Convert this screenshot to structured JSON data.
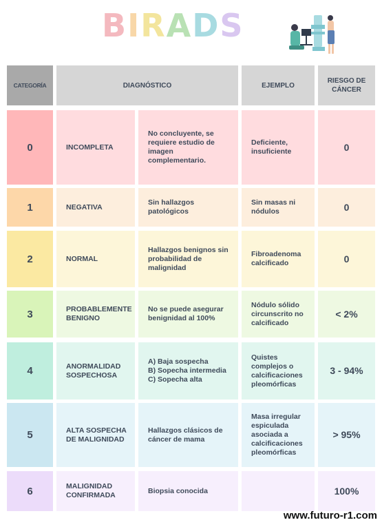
{
  "title": "BIRADS",
  "title_letter_colors": [
    "#f4b9bf",
    "#f8d7a8",
    "#f3e59d",
    "#b9e1b4",
    "#a8dbe1",
    "#d9c7f0"
  ],
  "header": {
    "categoria": "CATEGORÍA",
    "diagnostico": "DIAGNÓSTICO",
    "ejemplo": "EJEMPLO",
    "riesgo": "RIESGO DE CÁNCER"
  },
  "rows": [
    {
      "cat": "0",
      "diag": "INCOMPLETA",
      "detalle": "No concluyente, se requiere estudio de imagen complementario.",
      "ejemplo": "Deficiente, insuficiente",
      "riesgo": "0",
      "num_color": "#ffb7b9",
      "cell_color": "#ffdcdf"
    },
    {
      "cat": "1",
      "diag": "NEGATIVA",
      "detalle": "Sin hallazgos patológicos",
      "ejemplo": "Sin masas ni nódulos",
      "riesgo": "0",
      "num_color": "#fdd7a9",
      "cell_color": "#fdeedd"
    },
    {
      "cat": "2",
      "diag": "NORMAL",
      "detalle": "Hallazgos benignos sin probabilidad de malignidad",
      "ejemplo": "Fibroadenoma calcificado",
      "riesgo": "0",
      "num_color": "#fbe9a2",
      "cell_color": "#fdf6d9"
    },
    {
      "cat": "3",
      "diag": "PROBABLEMENTE BENIGNO",
      "detalle": "No se puede asegurar benignidad al 100%",
      "ejemplo": "Nódulo sólido circunscrito no calcificado",
      "riesgo": "< 2%",
      "num_color": "#d9f4b9",
      "cell_color": "#eef9e2"
    },
    {
      "cat": "4",
      "diag": "ANORMALIDAD SOSPECHOSA",
      "detalle": "A) Baja sospecha\nB) Sopecha intermedia\nC) Sopecha alta",
      "ejemplo": "Quistes complejos o calcificaciones pleomórficas",
      "riesgo": "3 - 94%",
      "num_color": "#bfeede",
      "cell_color": "#e1f6ef"
    },
    {
      "cat": "5",
      "diag": "ALTA SOSPECHA DE MALIGNIDAD",
      "detalle": "Hallazgos clásicos de cáncer de mama",
      "ejemplo": "Masa irregular espiculada asociada a calcificaciones pleomórficas",
      "riesgo": "> 95%",
      "num_color": "#cbe7f1",
      "cell_color": "#e5f4f9"
    },
    {
      "cat": "6",
      "diag": "MALIGNIDAD CONFIRMADA",
      "detalle": "Biopsia conocida",
      "ejemplo": "",
      "riesgo": "100%",
      "num_color": "#ecdcfa",
      "cell_color": "#f7effd"
    }
  ],
  "footer": "www.futuro-r1.com",
  "illustration": "mammography-scene-icon"
}
